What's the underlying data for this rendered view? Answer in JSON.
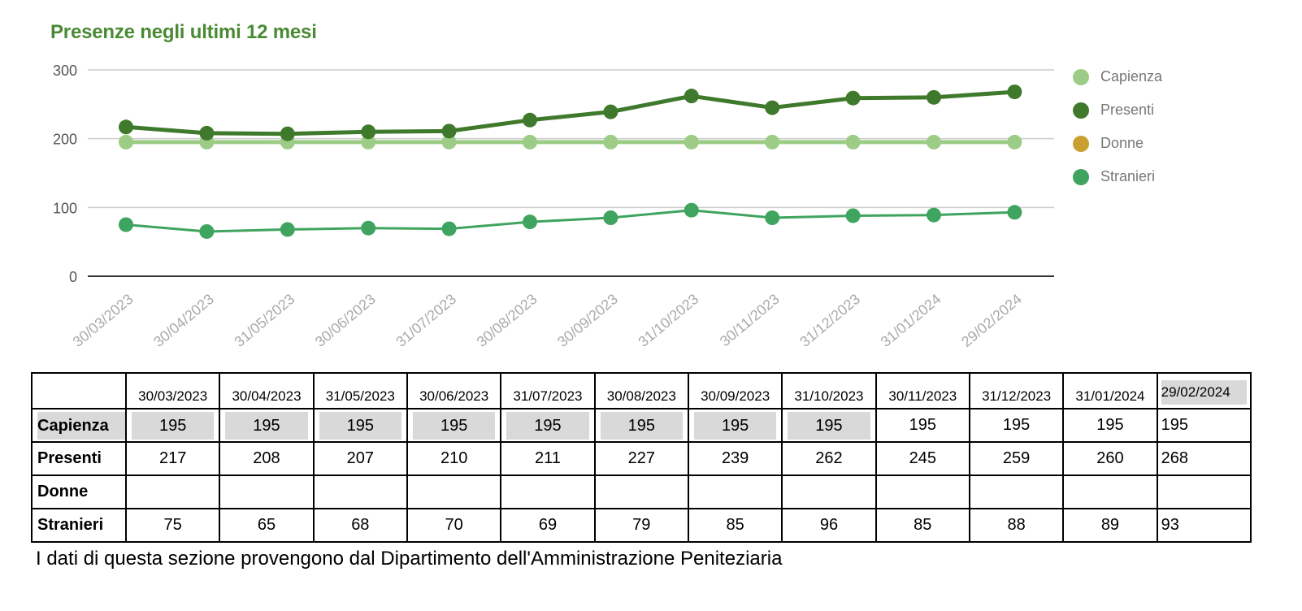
{
  "chart_data": {
    "type": "line",
    "title": "Presenze negli ultimi 12 mesi",
    "categories": [
      "30/03/2023",
      "30/04/2023",
      "31/05/2023",
      "30/06/2023",
      "31/07/2023",
      "30/08/2023",
      "30/09/2023",
      "31/10/2023",
      "30/11/2023",
      "31/12/2023",
      "31/01/2024",
      "29/02/2024"
    ],
    "y_ticks": [
      0,
      100,
      200,
      300
    ],
    "ylim": [
      0,
      300
    ],
    "legend_position": "right",
    "series": [
      {
        "name": "Capienza",
        "color": "#9ccc86",
        "values": [
          195,
          195,
          195,
          195,
          195,
          195,
          195,
          195,
          195,
          195,
          195,
          195
        ]
      },
      {
        "name": "Presenti",
        "color": "#3f7a2c",
        "values": [
          217,
          208,
          207,
          210,
          211,
          227,
          239,
          262,
          245,
          259,
          260,
          268
        ]
      },
      {
        "name": "Donne",
        "color": "#c9a030",
        "values": [
          null,
          null,
          null,
          null,
          null,
          null,
          null,
          null,
          null,
          null,
          null,
          null
        ]
      },
      {
        "name": "Stranieri",
        "color": "#3fa45f",
        "values": [
          75,
          65,
          68,
          70,
          69,
          79,
          85,
          96,
          85,
          88,
          89,
          93
        ]
      }
    ]
  },
  "table": {
    "dates": [
      "30/03/2023",
      "30/04/2023",
      "31/05/2023",
      "30/06/2023",
      "31/07/2023",
      "30/08/2023",
      "30/09/2023",
      "31/10/2023",
      "30/11/2023",
      "31/12/2023",
      "31/01/2024",
      "29/02/2024"
    ],
    "rows": [
      {
        "label": "Capienza",
        "values": [
          "195",
          "195",
          "195",
          "195",
          "195",
          "195",
          "195",
          "195",
          "195",
          "195",
          "195",
          "195"
        ]
      },
      {
        "label": "Presenti",
        "values": [
          "217",
          "208",
          "207",
          "210",
          "211",
          "227",
          "239",
          "262",
          "245",
          "259",
          "260",
          "268"
        ]
      },
      {
        "label": "Donne",
        "values": [
          "",
          "",
          "",
          "",
          "",
          "",
          "",
          "",
          "",
          "",
          "",
          ""
        ]
      },
      {
        "label": "Stranieri",
        "values": [
          "75",
          "65",
          "68",
          "70",
          "69",
          "79",
          "85",
          "96",
          "85",
          "88",
          "89",
          "93"
        ]
      }
    ]
  },
  "source_note": "I dati di questa sezione provengono dal Dipartimento dell'Amministrazione Peniteziaria"
}
